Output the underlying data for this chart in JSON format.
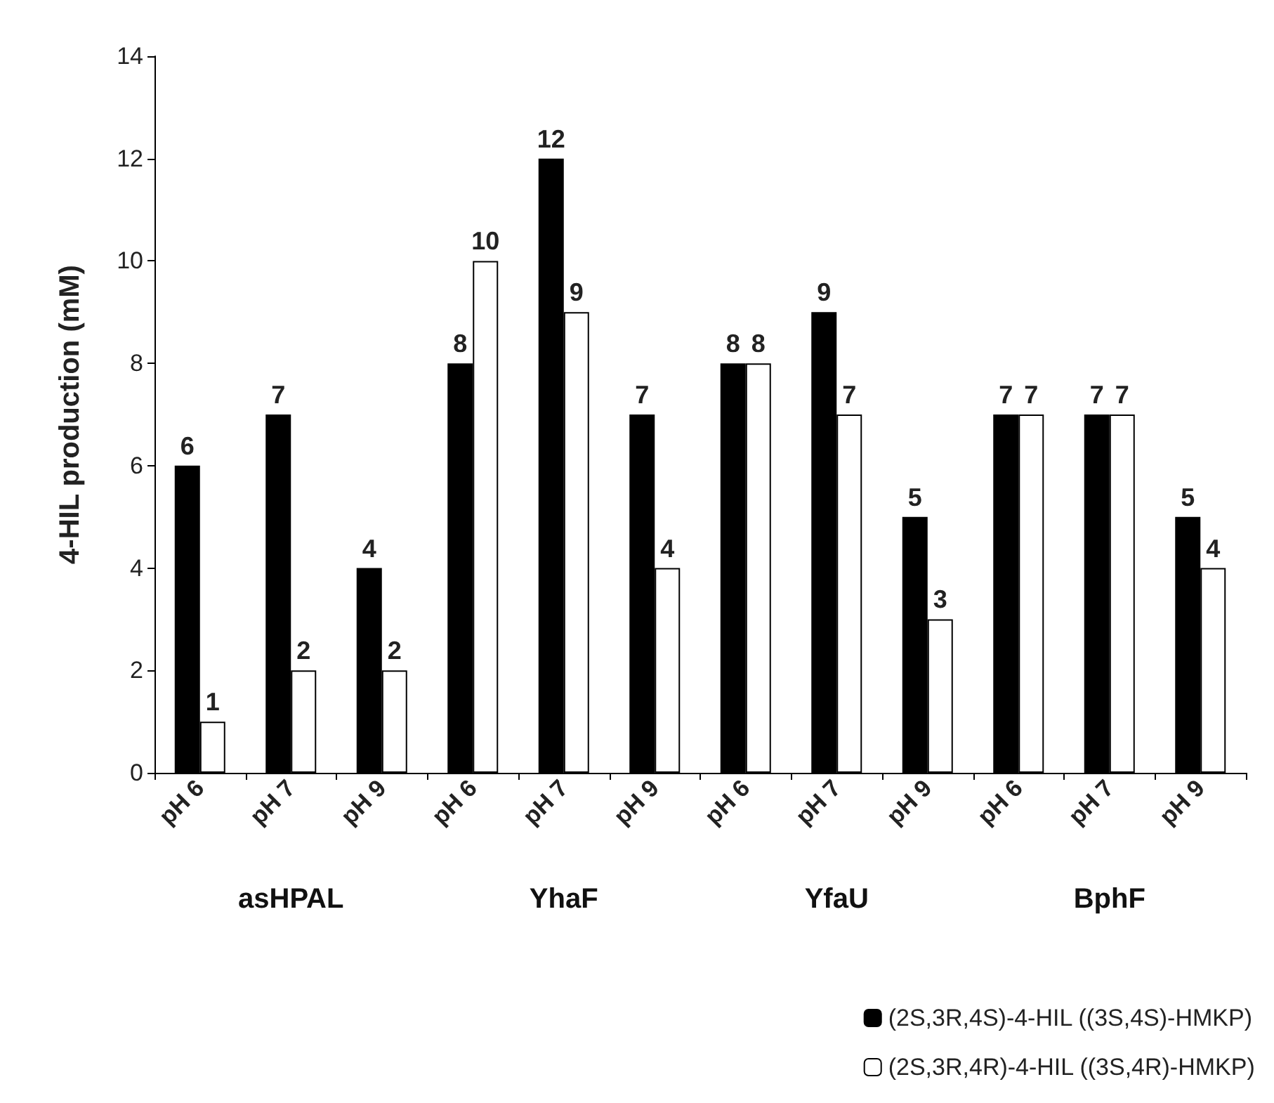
{
  "chart_data": {
    "type": "bar",
    "ylabel": "4-HIL production (mM)",
    "categories": [
      "pH 6",
      "pH 7",
      "pH 9",
      "pH 6",
      "pH 7",
      "pH 9",
      "pH 6",
      "pH 7",
      "pH 9",
      "pH 6",
      "pH 7",
      "pH 9"
    ],
    "series": [
      {
        "name": "(2S,3R,4S)-4-HIL ((3S,4S)-HMKP)",
        "color": "#000000",
        "values": [
          6,
          7,
          4,
          8,
          12,
          7,
          8,
          9,
          5,
          7,
          7,
          5
        ]
      },
      {
        "name": "(2S,3R,4R)-4-HIL ((3S,4R)-HMKP)",
        "color": "#ffffff",
        "values": [
          1,
          2,
          2,
          10,
          9,
          4,
          8,
          7,
          3,
          7,
          7,
          4
        ]
      }
    ],
    "annotations": [
      "asHPAL",
      "YhaF",
      "YfaU",
      "BphF"
    ],
    "ylim": [
      0,
      14
    ],
    "yticks": [
      0,
      2,
      4,
      6,
      8,
      10,
      12,
      14
    ],
    "data_labels": true,
    "legend": "bottom right"
  }
}
